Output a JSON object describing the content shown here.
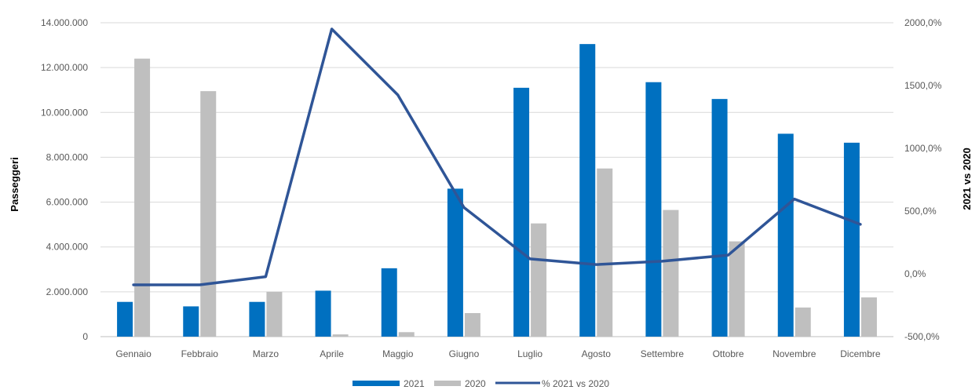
{
  "chart_data": {
    "type": "bar",
    "categories": [
      "Gennaio",
      "Febbraio",
      "Marzo",
      "Aprile",
      "Maggio",
      "Giugno",
      "Luglio",
      "Agosto",
      "Settembre",
      "Ottobre",
      "Novembre",
      "Dicembre"
    ],
    "series": [
      {
        "name": "2021",
        "type": "bar",
        "axis": "left",
        "color": "#0070C0",
        "values": [
          1550000,
          1350000,
          1550000,
          2050000,
          3050000,
          6600000,
          11100000,
          13050000,
          11350000,
          10600000,
          9050000,
          8650000
        ]
      },
      {
        "name": "2020",
        "type": "bar",
        "axis": "left",
        "color": "#BFBFBF",
        "values": [
          12400000,
          10950000,
          2000000,
          100000,
          200000,
          1050000,
          5050000,
          7500000,
          5650000,
          4250000,
          1300000,
          1750000
        ]
      },
      {
        "name": "% 2021 vs 2020",
        "type": "line",
        "axis": "right",
        "color": "#2F5597",
        "values": [
          -87.5,
          -87.7,
          -22.5,
          1950.0,
          1425.0,
          528.6,
          119.8,
          74.0,
          100.9,
          149.4,
          596.2,
          394.3
        ]
      }
    ],
    "ylabel": "Passeggeri",
    "ylim": [
      0,
      14000000
    ],
    "y_ticks": [
      "0",
      "2.000.000",
      "4.000.000",
      "6.000.000",
      "8.000.000",
      "10.000.000",
      "12.000.000",
      "14.000.000"
    ],
    "y2label": "2021 vs 2020",
    "y2lim": [
      -500,
      2000
    ],
    "y2_ticks": [
      "-500,0%",
      "0,0%",
      "500,0%",
      "1000,0%",
      "1500,0%",
      "2000,0%"
    ],
    "grid": true,
    "legend": "bottom",
    "legend_entries": [
      "2021",
      "2020",
      "% 2021 vs 2020"
    ]
  }
}
